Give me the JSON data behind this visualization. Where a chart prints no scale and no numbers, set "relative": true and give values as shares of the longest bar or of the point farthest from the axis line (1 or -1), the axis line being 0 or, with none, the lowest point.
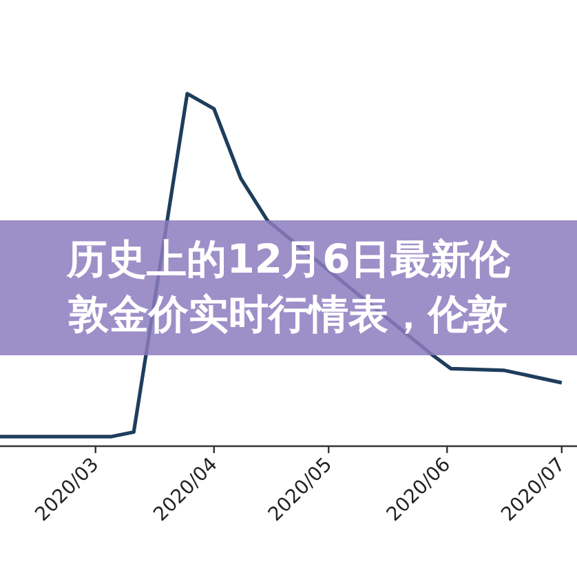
{
  "chart_data": {
    "type": "line",
    "title": "历史上的12月6日最新伦敦金价实时行情表，伦敦",
    "relative": true,
    "x": [
      "2020-02-05",
      "2020-03-05",
      "2020-03-11",
      "2020-03-25",
      "2020-04-01",
      "2020-04-08",
      "2020-04-15",
      "2020-05-28",
      "2020-06-02",
      "2020-06-16",
      "2020-07-01"
    ],
    "series": [
      {
        "color": "#1f3d5c",
        "values": [
          0.027,
          0.027,
          0.04,
          1,
          0.957,
          0.76,
          0.64,
          0.26,
          0.22,
          0.215,
          0.18
        ]
      }
    ],
    "xlim": [
      "2020-02-05",
      "2020-07-05"
    ],
    "xticks": [
      {
        "value": "2020-03",
        "label": "2020/03"
      },
      {
        "value": "2020-04",
        "label": "2020/04"
      },
      {
        "value": "2020-05",
        "label": "2020/05"
      },
      {
        "value": "2020-06",
        "label": "2020/06"
      },
      {
        "value": "2020-07",
        "label": "2020/07"
      }
    ],
    "marker": "none",
    "line_style": "solid"
  }
}
